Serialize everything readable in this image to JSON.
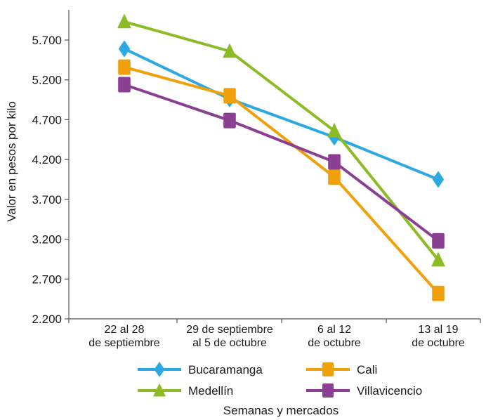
{
  "chart_data": {
    "type": "line",
    "title": "",
    "xlabel": "Semanas y mercados",
    "ylabel": "Valor en pesos por kilo",
    "ylim": [
      2200,
      5700
    ],
    "yticks": [
      "2.200",
      "2.700",
      "3.200",
      "3.700",
      "4.200",
      "4.700",
      "5.200",
      "5.700"
    ],
    "categories": [
      [
        "22 al 28",
        "de septiembre"
      ],
      [
        "29 de septiembre",
        "al 5 de octubre"
      ],
      [
        "6 al 12",
        "de octubre"
      ],
      [
        "13 al 19",
        "de octubre"
      ]
    ],
    "grid": false,
    "legend_position": "bottom",
    "series": [
      {
        "name": "Bucaramanga",
        "color": "#2ca9e1",
        "marker": "diamond",
        "values": [
          5590,
          4960,
          4480,
          3950
        ]
      },
      {
        "name": "Cali",
        "color": "#f0a00b",
        "marker": "square",
        "values": [
          5360,
          5000,
          3980,
          2520
        ]
      },
      {
        "name": "Medellín",
        "color": "#8dbb25",
        "marker": "triangle",
        "values": [
          5930,
          5560,
          4560,
          2940
        ]
      },
      {
        "name": "Villavicencio",
        "color": "#8a3f93",
        "marker": "square",
        "values": [
          5140,
          4690,
          4170,
          3180
        ]
      }
    ]
  }
}
